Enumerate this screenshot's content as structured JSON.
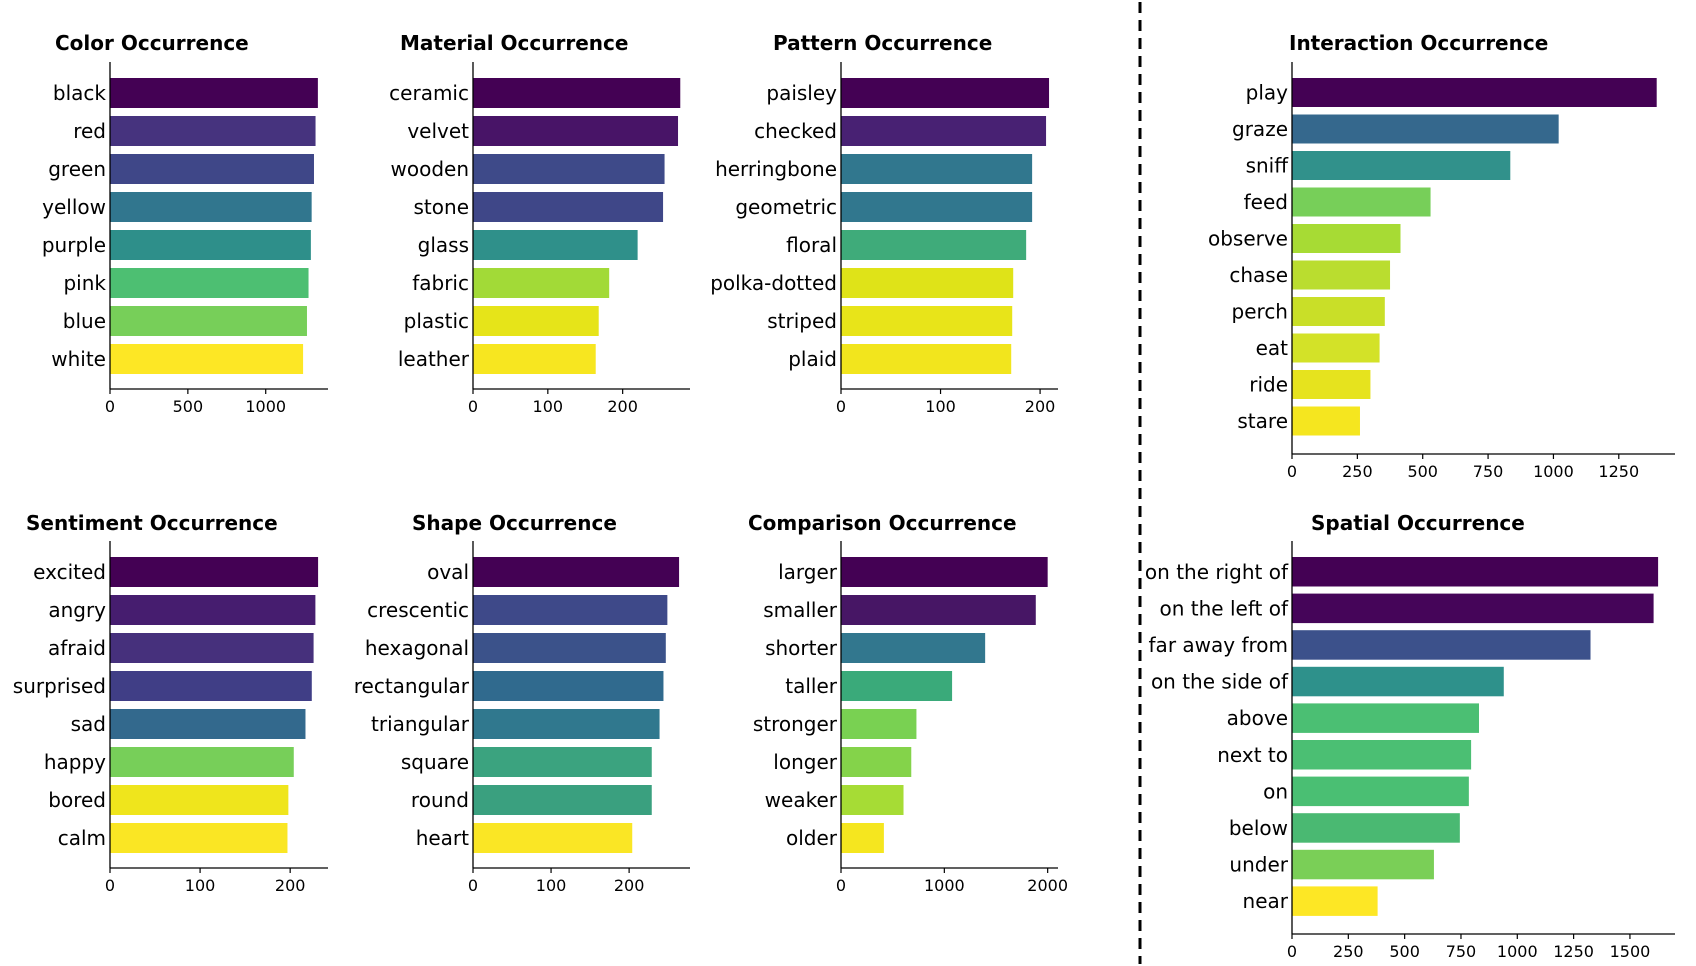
{
  "chart_data": [
    {
      "id": "color",
      "type": "bar",
      "orientation": "horizontal",
      "title": "Color Occurrence",
      "categories": [
        "black",
        "red",
        "green",
        "yellow",
        "purple",
        "pink",
        "blue",
        "white"
      ],
      "values": [
        1335,
        1320,
        1310,
        1295,
        1290,
        1275,
        1265,
        1240
      ],
      "colors": [
        "#440154",
        "#46337e",
        "#3f4788",
        "#31768e",
        "#2e8f8a",
        "#4dbf72",
        "#77cf59",
        "#fde725"
      ],
      "xticks": [
        0,
        500,
        1000
      ],
      "xlim": [
        0,
        1400
      ]
    },
    {
      "id": "material",
      "type": "bar",
      "orientation": "horizontal",
      "title": "Material Occurrence",
      "categories": [
        "ceramic",
        "velvet",
        "wooden",
        "stone",
        "glass",
        "fabric",
        "plastic",
        "leather"
      ],
      "values": [
        277,
        274,
        256,
        254,
        220,
        182,
        168,
        164
      ],
      "colors": [
        "#440154",
        "#481467",
        "#3e4a89",
        "#3f4788",
        "#2f908a",
        "#a2da37",
        "#e6e419",
        "#f7e620"
      ],
      "xticks": [
        0,
        100,
        200
      ],
      "xlim": [
        0,
        290
      ]
    },
    {
      "id": "pattern",
      "type": "bar",
      "orientation": "horizontal",
      "title": "Pattern Occurrence",
      "categories": [
        "paisley",
        "checked",
        "herringbone",
        "geometric",
        "floral",
        "polka-dotted",
        "striped",
        "plaid"
      ],
      "values": [
        209,
        206,
        192,
        192,
        186,
        173,
        172,
        171
      ],
      "colors": [
        "#440154",
        "#482173",
        "#31778e",
        "#31778e",
        "#3fab7a",
        "#dfe318",
        "#e8e419",
        "#f2e51d"
      ],
      "xticks": [
        0,
        100,
        200
      ],
      "xlim": [
        0,
        218
      ]
    },
    {
      "id": "interaction",
      "type": "bar",
      "orientation": "horizontal",
      "title": "Interaction Occurrence",
      "categories": [
        "play",
        "graze",
        "sniff",
        "feed",
        "observe",
        "chase",
        "perch",
        "eat",
        "ride",
        "stare"
      ],
      "values": [
        1395,
        1020,
        835,
        530,
        415,
        375,
        355,
        335,
        300,
        260
      ],
      "colors": [
        "#440154",
        "#35688d",
        "#31918b",
        "#77cf59",
        "#a7db34",
        "#badd2f",
        "#c9df28",
        "#d3e228",
        "#e6e31e",
        "#f5e61f"
      ],
      "xticks": [
        0,
        250,
        500,
        750,
        1000,
        1250
      ],
      "xlim": [
        0,
        1465
      ]
    },
    {
      "id": "sentiment",
      "type": "bar",
      "orientation": "horizontal",
      "title": "Sentiment Occurrence",
      "categories": [
        "excited",
        "angry",
        "afraid",
        "surprised",
        "sad",
        "happy",
        "bored",
        "calm"
      ],
      "values": [
        231,
        228,
        226,
        224,
        217,
        204,
        198,
        197
      ],
      "colors": [
        "#440154",
        "#461d6f",
        "#46307c",
        "#403e86",
        "#33698d",
        "#77cf59",
        "#efe51c",
        "#fae624"
      ],
      "xticks": [
        0,
        100,
        200
      ],
      "xlim": [
        0,
        242
      ]
    },
    {
      "id": "shape",
      "type": "bar",
      "orientation": "horizontal",
      "title": "Shape Occurrence",
      "categories": [
        "oval",
        "crescentic",
        "hexagonal",
        "rectangular",
        "triangular",
        "square",
        "round",
        "heart"
      ],
      "values": [
        264,
        249,
        247,
        244,
        239,
        229,
        229,
        204
      ],
      "colors": [
        "#440154",
        "#3e4989",
        "#3b528a",
        "#306a8e",
        "#30788e",
        "#3ba37f",
        "#3aa07f",
        "#fae625"
      ],
      "xticks": [
        0,
        100,
        200
      ],
      "xlim": [
        0,
        278
      ]
    },
    {
      "id": "comparison",
      "type": "bar",
      "orientation": "horizontal",
      "title": "Comparison Occurrence",
      "categories": [
        "larger",
        "smaller",
        "shorter",
        "taller",
        "stronger",
        "longer",
        "weaker",
        "older"
      ],
      "values": [
        2000,
        1885,
        1395,
        1075,
        730,
        680,
        605,
        415
      ],
      "colors": [
        "#440154",
        "#471665",
        "#32778e",
        "#3aaa7a",
        "#79d152",
        "#84d34a",
        "#a6dc35",
        "#f5e61f"
      ],
      "xticks": [
        0,
        1000,
        2000
      ],
      "xlim": [
        0,
        2100
      ]
    },
    {
      "id": "spatial",
      "type": "bar",
      "orientation": "horizontal",
      "title": "Spatial Occurrence",
      "categories": [
        "on the right of",
        "on the left of",
        "far away from",
        "on the side of",
        "above",
        "next to",
        "on",
        "below",
        "under",
        "near"
      ],
      "values": [
        1625,
        1605,
        1325,
        940,
        830,
        795,
        785,
        745,
        630,
        380
      ],
      "colors": [
        "#440154",
        "#450559",
        "#3c518b",
        "#2e918b",
        "#4bbf73",
        "#4bbf73",
        "#4abf73",
        "#4ab972",
        "#7acf57",
        "#fde725"
      ],
      "xticks": [
        0,
        250,
        500,
        750,
        1000,
        1250,
        1500
      ],
      "xlim": [
        0,
        1700
      ]
    }
  ]
}
